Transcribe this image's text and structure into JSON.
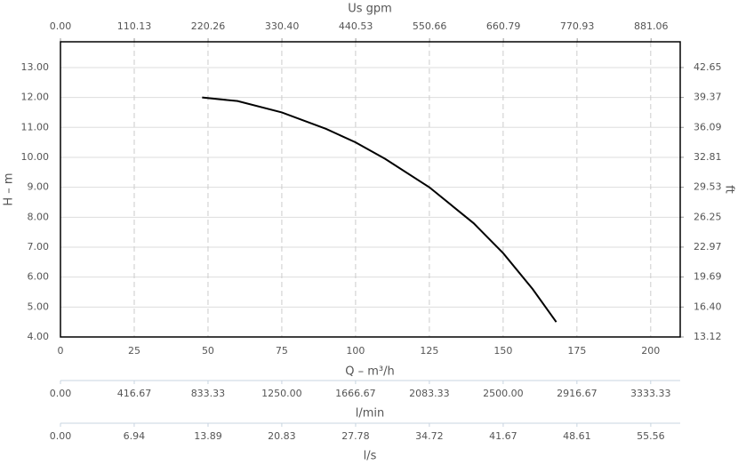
{
  "chart_data": {
    "type": "line",
    "x": [
      48,
      60,
      75,
      90,
      100,
      110,
      125,
      140,
      150,
      160,
      168
    ],
    "values": [
      12.0,
      11.88,
      11.5,
      10.95,
      10.5,
      9.95,
      9.0,
      7.8,
      6.8,
      5.6,
      4.5
    ],
    "color": "#000000",
    "xlabel": "Q – m³/h",
    "ylabel": "H – m",
    "y2label": "ft",
    "xlim": [
      0,
      210
    ],
    "xticks": [
      0,
      25,
      50,
      75,
      100,
      125,
      150,
      175,
      200
    ],
    "ylim": [
      4,
      13.86
    ],
    "yticks": [
      {
        "value": 4,
        "label": "4.00"
      },
      {
        "value": 5,
        "label": "5.00"
      },
      {
        "value": 6,
        "label": "6.00"
      },
      {
        "value": 7,
        "label": "7.00"
      },
      {
        "value": 8,
        "label": "8.00"
      },
      {
        "value": 9,
        "label": "9.00"
      },
      {
        "value": 10,
        "label": "10.00"
      },
      {
        "value": 11,
        "label": "11.00"
      },
      {
        "value": 12,
        "label": "12.00"
      },
      {
        "value": 13,
        "label": "13.00"
      }
    ],
    "y2lim": [
      13.12,
      45.47
    ],
    "y2ticks": [
      {
        "value": 13.12,
        "label": "13.12"
      },
      {
        "value": 16.4,
        "label": "16.40"
      },
      {
        "value": 19.69,
        "label": "19.69"
      },
      {
        "value": 22.97,
        "label": "22.97"
      },
      {
        "value": 26.25,
        "label": "26.25"
      },
      {
        "value": 29.53,
        "label": "29.53"
      },
      {
        "value": 32.81,
        "label": "32.81"
      },
      {
        "value": 36.09,
        "label": "36.09"
      },
      {
        "value": 39.37,
        "label": "39.37"
      },
      {
        "value": 42.65,
        "label": "42.65"
      }
    ],
    "grid": true,
    "top_axis": {
      "label": "Us gpm",
      "lim": [
        0,
        924.56
      ],
      "ticks": [
        {
          "value": 0,
          "label": "0.00"
        },
        110.13,
        220.26,
        {
          "value": 330.4,
          "label": "330.40"
        },
        440.53,
        550.66,
        660.79,
        770.93,
        881.06
      ]
    },
    "extra_axes": [
      {
        "label": "l/min",
        "lim": [
          0,
          3500
        ],
        "ticks": [
          {
            "value": 0,
            "label": "0.00"
          },
          416.67,
          833.33,
          {
            "value": 1250,
            "label": "1250.00"
          },
          1666.67,
          2083.33,
          {
            "value": 2500,
            "label": "2500.00"
          },
          2916.67,
          3333.33
        ]
      },
      {
        "label": "l/s",
        "lim": [
          0,
          58.33
        ],
        "ticks": [
          {
            "value": 0,
            "label": "0.00"
          },
          6.94,
          13.89,
          20.83,
          27.78,
          34.72,
          41.67,
          48.61,
          55.56
        ]
      }
    ]
  }
}
